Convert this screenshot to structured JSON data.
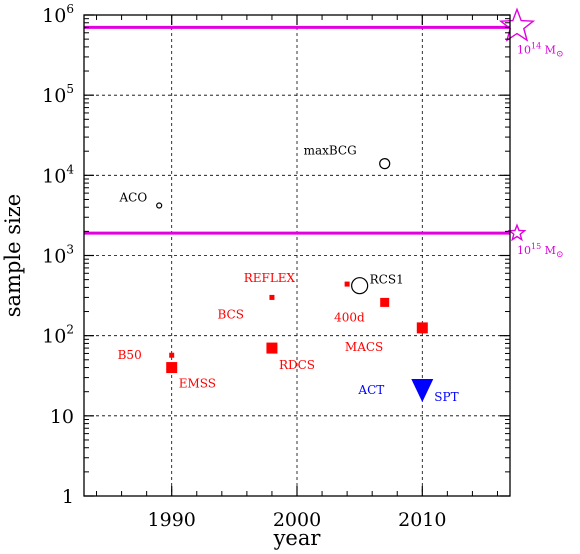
{
  "chart_data": {
    "type": "scatter",
    "xlabel": "year",
    "ylabel": "sample size",
    "xlim": [
      1983,
      2017
    ],
    "ylim": [
      1,
      1000000
    ],
    "yscale": "log",
    "x_ticks": [
      {
        "value": 1990,
        "label": "1990"
      },
      {
        "value": 2000,
        "label": "2000"
      },
      {
        "value": 2010,
        "label": "2010"
      }
    ],
    "y_ticks": [
      {
        "value": 1,
        "label": "1",
        "exp": ""
      },
      {
        "value": 10,
        "label": "10",
        "exp": ""
      },
      {
        "value": 100,
        "label": "10",
        "exp": "2"
      },
      {
        "value": 1000,
        "label": "10",
        "exp": "3"
      },
      {
        "value": 10000,
        "label": "10",
        "exp": "4"
      },
      {
        "value": 100000,
        "label": "10",
        "exp": "5"
      },
      {
        "value": 1000000,
        "label": "10",
        "exp": "6"
      }
    ],
    "grid": true,
    "reference_lines": [
      {
        "y": 700000,
        "label": "10",
        "exp": "14",
        "unit": " M",
        "sub": "⊙",
        "marker": "star-large",
        "color": "#e000e0"
      },
      {
        "y": 1900,
        "label": "10",
        "exp": "15",
        "unit": " M",
        "sub": "⊙",
        "marker": "star-small",
        "color": "#e000e0"
      }
    ],
    "points": [
      {
        "name": "ACO",
        "x": 1989,
        "y": 4200,
        "marker": "circle",
        "size": 2.5,
        "color": "#000000",
        "label_dx": -12,
        "label_dy": -8
      },
      {
        "name": "maxBCG",
        "x": 2007,
        "y": 14000,
        "marker": "circle",
        "size": 5,
        "color": "#000000",
        "label_dx": -28,
        "label_dy": -13
      },
      {
        "name": "RCS1",
        "x": 2005,
        "y": 420,
        "marker": "circle",
        "size": 8,
        "color": "#000000",
        "label_dx": 10,
        "label_dy": -6
      },
      {
        "name": "REFLEX",
        "x": 2004,
        "y": 440,
        "marker": "square",
        "size": 5,
        "color": "#ff0000",
        "label_dx": -52,
        "label_dy": -6
      },
      {
        "name": "400d",
        "x": 2007,
        "y": 260,
        "marker": "square",
        "size": 9,
        "color": "#ff0000",
        "label_dx": -20,
        "label_dy": 15
      },
      {
        "name": "BCS",
        "x": 1998,
        "y": 300,
        "marker": "square",
        "size": 5,
        "color": "#ff0000",
        "label_dx": -28,
        "label_dy": 17
      },
      {
        "name": "MACS",
        "x": 2010,
        "y": 125,
        "marker": "square",
        "size": 11,
        "color": "#ff0000",
        "label_dx": -39,
        "label_dy": 19
      },
      {
        "name": "RDCS",
        "x": 1998,
        "y": 70,
        "marker": "square",
        "size": 11,
        "color": "#ff0000",
        "label_dx": 7,
        "label_dy": 17
      },
      {
        "name": "B50",
        "x": 1990,
        "y": 57,
        "marker": "square",
        "size": 5,
        "color": "#ff0000",
        "label_dx": -30,
        "label_dy": 0
      },
      {
        "name": "EMSS",
        "x": 1990,
        "y": 40,
        "marker": "square",
        "size": 11,
        "color": "#ff0000",
        "label_dx": 7,
        "label_dy": 16
      },
      {
        "name": "ACT",
        "x": 2010,
        "y": 21,
        "marker": "triangle-down",
        "size": 22,
        "color": "#0000ff",
        "label_dx": -38,
        "label_dy": 0
      },
      {
        "name": "SPT",
        "x": 2010,
        "y": 21,
        "marker": "none",
        "size": 0,
        "color": "#0000ff",
        "label_dx": 12,
        "label_dy": 7
      }
    ]
  }
}
